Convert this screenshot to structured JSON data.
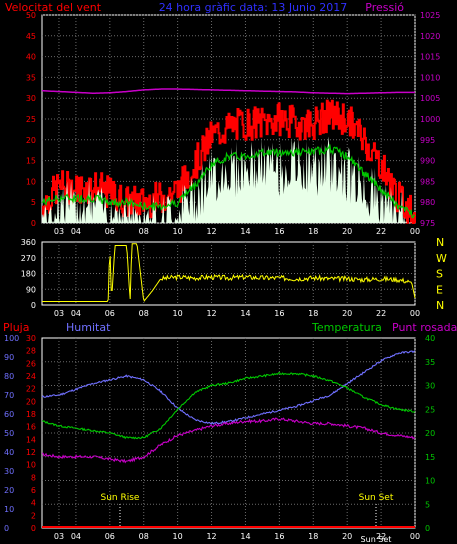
{
  "colors": {
    "background": "#000000",
    "frame": "#ffffff",
    "grid": "#6a6a6a",
    "wind_speed": "#ff0000",
    "wind_avg": "#00c800",
    "wind_gust_fill": "#e8ffe8",
    "pressure": "#c800c8",
    "wind_dir": "#ffff00",
    "rain": "#ff0000",
    "humidity": "#7070ff",
    "temperature": "#00c800",
    "dew_point": "#c800c8",
    "sun_marker": "#ffff00"
  },
  "header": {
    "wind_label": "Velocitat del vent",
    "title": "24 hora gràfic data: 13 Junio 2017",
    "pressure_label": "Pressió"
  },
  "panel3_labels": {
    "rain": "Pluja",
    "humidity": "Humitat",
    "temperature": "Temperatura",
    "dew_point": "Punt rosada"
  },
  "sun_labels": {
    "rise": "Sun Rise",
    "set": "Sun Set",
    "set_repeat": "Sun Set"
  },
  "x_ticks": [
    "03",
    "04",
    "06",
    "08",
    "10",
    "12",
    "14",
    "16",
    "18",
    "20",
    "22",
    "00"
  ],
  "chart_data": [
    {
      "type": "line",
      "title": "24 hora gràfic data: 13 Junio 2017",
      "ylabel": "Velocitat del vent",
      "y2label": "Pressió",
      "ylim": [
        0,
        50
      ],
      "y2lim": [
        975,
        1025
      ],
      "y_ticks": [
        "0",
        "5",
        "10",
        "15",
        "20",
        "25",
        "30",
        "35",
        "40",
        "45",
        "50"
      ],
      "y2_ticks": [
        "975",
        "980",
        "985",
        "990",
        "995",
        "1000",
        "1005",
        "1010",
        "1015",
        "1020",
        "1025"
      ],
      "x_hours": [
        2,
        3,
        4,
        5,
        6,
        7,
        8,
        9,
        10,
        11,
        12,
        13,
        14,
        15,
        16,
        17,
        18,
        19,
        20,
        21,
        22,
        23,
        24
      ],
      "series": [
        {
          "key": "wind_speed",
          "values": [
            4,
            9,
            8,
            9,
            7,
            5,
            5,
            6,
            8,
            14,
            21,
            23,
            24,
            24,
            25,
            24,
            24,
            26,
            25,
            20,
            14,
            6,
            2
          ]
        },
        {
          "key": "wind_avg",
          "values": [
            5,
            6,
            6,
            6,
            5,
            5,
            4,
            4,
            5,
            9,
            14,
            16,
            16,
            17,
            17,
            17,
            17,
            18,
            16,
            12,
            8,
            4,
            2
          ]
        },
        {
          "key": "wind_gust",
          "values": [
            3,
            5,
            5,
            5,
            3,
            3,
            2,
            2,
            2,
            7,
            11,
            13,
            13,
            14,
            13,
            14,
            13,
            14,
            12,
            9,
            5,
            2,
            1
          ]
        },
        {
          "key": "pressure",
          "values": [
            1006.8,
            1006.6,
            1006.4,
            1006.2,
            1006.3,
            1006.6,
            1007.0,
            1007.2,
            1007.2,
            1007.1,
            1007.0,
            1006.9,
            1006.8,
            1006.7,
            1006.6,
            1006.5,
            1006.3,
            1006.2,
            1006.1,
            1006.2,
            1006.3,
            1006.4,
            1006.4
          ]
        }
      ]
    },
    {
      "type": "line",
      "ylim": [
        0,
        360
      ],
      "y_ticks": [
        "0",
        "90",
        "180",
        "270",
        "360"
      ],
      "y2_letters": [
        "N",
        "W",
        "S",
        "E",
        "N"
      ],
      "x_hours": [
        2,
        3,
        4,
        5,
        5.9,
        6.0,
        6.1,
        6.3,
        7.0,
        7.2,
        7.3,
        7.6,
        8.0,
        8.5,
        9,
        10,
        11,
        12,
        13,
        14,
        15,
        16,
        17,
        18,
        19,
        20,
        21,
        22,
        23,
        23.8,
        24
      ],
      "series": [
        {
          "key": "wind_dir",
          "values": [
            20,
            20,
            20,
            20,
            20,
            350,
            20,
            340,
            340,
            20,
            350,
            350,
            20,
            80,
            150,
            160,
            155,
            160,
            155,
            160,
            155,
            155,
            150,
            155,
            150,
            150,
            145,
            150,
            145,
            130,
            40
          ]
        }
      ]
    },
    {
      "type": "line",
      "ylim_humidity": [
        0,
        100
      ],
      "ylim_temperature": [
        0,
        40
      ],
      "ylim_rain": [
        0,
        30
      ],
      "y_rain_ticks": [
        "0",
        "2",
        "4",
        "6",
        "8",
        "10",
        "12",
        "14",
        "16",
        "18",
        "20",
        "22",
        "24",
        "26",
        "28",
        "30"
      ],
      "y_humidity_ticks": [
        "0",
        "10",
        "20",
        "30",
        "40",
        "50",
        "60",
        "70",
        "80",
        "90",
        "100"
      ],
      "y_temp_ticks": [
        "0",
        "5",
        "10",
        "15",
        "20",
        "25",
        "30",
        "35",
        "40"
      ],
      "sun_rise_hour": 6.6,
      "sun_set_hour": 21.7,
      "x_hours": [
        2,
        3,
        4,
        5,
        6,
        7,
        8,
        9,
        10,
        11,
        12,
        13,
        14,
        15,
        16,
        17,
        18,
        19,
        20,
        21,
        22,
        23,
        24
      ],
      "series": [
        {
          "key": "humidity",
          "values": [
            69,
            70,
            73,
            76,
            78,
            80,
            78,
            72,
            63,
            57,
            55,
            56,
            58,
            60,
            62,
            64,
            67,
            70,
            76,
            82,
            88,
            92,
            93
          ]
        },
        {
          "key": "temperature",
          "values": [
            22.5,
            21.5,
            21.0,
            20.5,
            20.0,
            19.0,
            19.0,
            21.0,
            25.0,
            28.5,
            30.0,
            30.5,
            31.5,
            32.0,
            32.5,
            32.5,
            32.0,
            31.0,
            29.5,
            27.5,
            26.0,
            25.0,
            24.5
          ]
        },
        {
          "key": "dew_point",
          "values": [
            15.5,
            15.0,
            15.0,
            15.0,
            14.5,
            14.0,
            15.0,
            17.5,
            19.5,
            20.5,
            21.5,
            22.0,
            22.5,
            22.5,
            23.0,
            22.5,
            22.0,
            22.0,
            21.5,
            21.0,
            20.0,
            19.5,
            19.0
          ]
        },
        {
          "key": "rain",
          "values": [
            0,
            0,
            0,
            0,
            0,
            0,
            0,
            0,
            0,
            0,
            0,
            0,
            0,
            0,
            0,
            0,
            0,
            0,
            0,
            0,
            0,
            0,
            0
          ]
        }
      ]
    }
  ]
}
